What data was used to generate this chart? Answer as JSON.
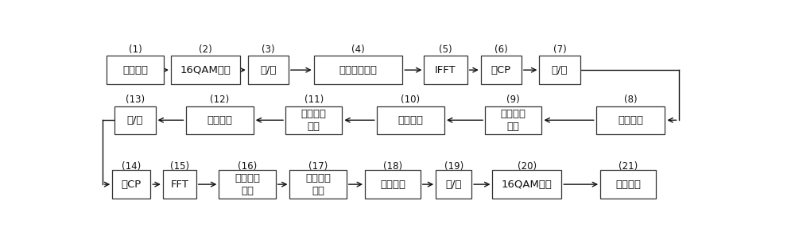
{
  "background": "#ffffff",
  "box_facecolor": "#ffffff",
  "box_edgecolor": "#333333",
  "text_color": "#111111",
  "arrow_color": "#111111",
  "row1_labels": [
    "原始数据",
    "16QAM调制",
    "串/并",
    "插入梳状导频",
    "IFFT",
    "加CP",
    "并/串"
  ],
  "row1_numbers": [
    "(1)",
    "(2)",
    "(3)",
    "(4)",
    "(5)",
    "(6)",
    "(7)"
  ],
  "row2_labels": [
    "串/并",
    "模数转换",
    "下变频、\n接收",
    "无线信道",
    "上变频、\n发送",
    "数模转换"
  ],
  "row2_numbers": [
    "(13)",
    "(12)",
    "(11)",
    "(10)",
    "(9)",
    "(8)"
  ],
  "row3_labels": [
    "去CP",
    "FFT",
    "信道参数\n估计",
    "信道响应\n估计",
    "信道补偿",
    "并/串",
    "16QAM解调",
    "数据输出"
  ],
  "row3_numbers": [
    "(14)",
    "(15)",
    "(16)",
    "(17)",
    "(18)",
    "(19)",
    "(20)",
    "(21)"
  ],
  "figsize": [
    10.0,
    3.11
  ],
  "dpi": 100
}
